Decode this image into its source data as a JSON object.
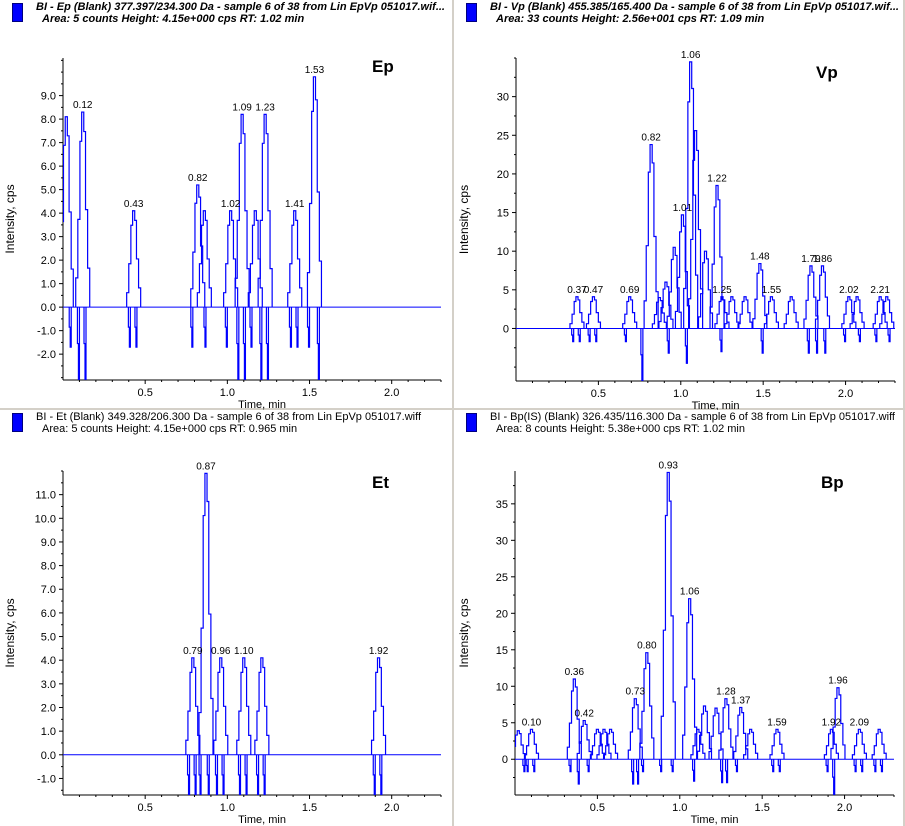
{
  "window": {
    "divider_color": "#d4d0c8",
    "trace_color": "#0000ff"
  },
  "panels": [
    {
      "id": "ep",
      "header_line1": "BI - Ep (Blank) 377.397/234.300 Da - sample 6 of 38 from Lin EpVp 051017.wif...",
      "header_line2": "Area: 5 counts  Height: 4.15e+000 cps  RT: 1.02 min",
      "header_style": "bold-italic"
    },
    {
      "id": "vp",
      "header_line1": "BI - Vp (Blank) 455.385/165.400 Da - sample 6 of 38 from Lin EpVp 051017.wif...",
      "header_line2": "Area: 33 counts  Height: 2.56e+001 cps  RT: 1.09 min",
      "header_style": "bold-italic"
    },
    {
      "id": "et",
      "header_line1": "BI - Et (Blank) 349.328/206.300 Da - sample 6 of 38 from Lin EpVp 051017.wiff",
      "header_line2": "Area: 5 counts  Height: 4.15e+000 cps  RT: 0.965 min",
      "header_style": "normal"
    },
    {
      "id": "bp",
      "header_line1": "BI - Bp(IS) (Blank) 326.435/116.300 Da - sample 6 of 38 from Lin EpVp 051017.wiff",
      "header_line2": "Area: 8 counts  Height: 5.38e+000 cps  RT: 1.02 min",
      "header_style": "normal"
    }
  ],
  "chart_data": [
    {
      "type": "line",
      "title": "Ep",
      "xlabel": "Time, min",
      "ylabel": "Intensity, cps",
      "xlim": [
        0,
        2.3
      ],
      "ylim": [
        -3.1,
        10.6
      ],
      "xticks": [
        0.5,
        1.0,
        1.5,
        2.0
      ],
      "xtick_labels": [
        "0.5",
        "1.0",
        "1.5",
        "2.0"
      ],
      "yticks": [
        -2,
        -1,
        0,
        1,
        2,
        3,
        4,
        5,
        6,
        7,
        8,
        9
      ],
      "ytick_labels": [
        "-2.0",
        "-1.0",
        "0.0",
        "1.0",
        "2.0",
        "3.0",
        "4.0",
        "5.0",
        "6.0",
        "7.0",
        "8.0",
        "9.0"
      ],
      "baseline": 0,
      "peaks": [
        {
          "rt": 0.02,
          "height": 8.1,
          "label": ""
        },
        {
          "rt": 0.12,
          "height": 8.3,
          "label": "0.12"
        },
        {
          "rt": 0.43,
          "height": 4.1,
          "label": "0.43"
        },
        {
          "rt": 0.82,
          "height": 5.2,
          "label": "0.82"
        },
        {
          "rt": 0.86,
          "height": 4.1,
          "label": ""
        },
        {
          "rt": 1.02,
          "height": 4.1,
          "label": "1.02"
        },
        {
          "rt": 1.09,
          "height": 8.2,
          "label": "1.09"
        },
        {
          "rt": 1.17,
          "height": 4.1,
          "label": ""
        },
        {
          "rt": 1.23,
          "height": 8.2,
          "label": "1.23"
        },
        {
          "rt": 1.41,
          "height": 4.1,
          "label": "1.41"
        },
        {
          "rt": 1.53,
          "height": 9.8,
          "label": "1.53"
        }
      ],
      "dips": [
        {
          "rt": 0.05,
          "depth": -1.7
        },
        {
          "rt": 0.1,
          "depth": -3.1
        },
        {
          "rt": 0.14,
          "depth": -3.1
        },
        {
          "rt": 0.41,
          "depth": -1.7
        },
        {
          "rt": 0.45,
          "depth": -1.7
        },
        {
          "rt": 0.79,
          "depth": -1.7
        },
        {
          "rt": 0.87,
          "depth": -1.7
        },
        {
          "rt": 1.0,
          "depth": -1.7
        },
        {
          "rt": 1.07,
          "depth": -3.1
        },
        {
          "rt": 1.11,
          "depth": -3.1
        },
        {
          "rt": 1.15,
          "depth": -1.7
        },
        {
          "rt": 1.21,
          "depth": -3.1
        },
        {
          "rt": 1.25,
          "depth": -3.1
        },
        {
          "rt": 1.39,
          "depth": -1.7
        },
        {
          "rt": 1.43,
          "depth": -1.7
        },
        {
          "rt": 1.5,
          "depth": -1.7
        },
        {
          "rt": 1.56,
          "depth": -3.1
        }
      ]
    },
    {
      "type": "line",
      "title": "Vp",
      "xlabel": "Time, min",
      "ylabel": "Intensity, cps",
      "xlim": [
        0,
        2.3
      ],
      "ylim": [
        -6.8,
        35
      ],
      "xticks": [
        0.5,
        1.0,
        1.5,
        2.0
      ],
      "xtick_labels": [
        "0.5",
        "1.0",
        "1.5",
        "2.0"
      ],
      "yticks": [
        0,
        5,
        10,
        15,
        20,
        25,
        30
      ],
      "ytick_labels": [
        "0",
        "5",
        "10",
        "15",
        "20",
        "25",
        "30"
      ],
      "baseline": 0,
      "peaks": [
        {
          "rt": 0.37,
          "height": 4.1,
          "label": "0.37"
        },
        {
          "rt": 0.47,
          "height": 4.1,
          "label": "0.47"
        },
        {
          "rt": 0.69,
          "height": 4.1,
          "label": "0.69"
        },
        {
          "rt": 0.82,
          "height": 23.8,
          "label": "0.82"
        },
        {
          "rt": 0.87,
          "height": 4.0,
          "label": ""
        },
        {
          "rt": 0.91,
          "height": 6.0,
          "label": ""
        },
        {
          "rt": 0.96,
          "height": 10.5,
          "label": ""
        },
        {
          "rt": 1.01,
          "height": 14.7,
          "label": "1.01"
        },
        {
          "rt": 1.06,
          "height": 34.5,
          "label": "1.06"
        },
        {
          "rt": 1.09,
          "height": 25.6,
          "label": ""
        },
        {
          "rt": 1.15,
          "height": 10.0,
          "label": ""
        },
        {
          "rt": 1.22,
          "height": 18.5,
          "label": "1.22"
        },
        {
          "rt": 1.25,
          "height": 4.1,
          "label": "1.25"
        },
        {
          "rt": 1.31,
          "height": 4.1,
          "label": ""
        },
        {
          "rt": 1.39,
          "height": 4.1,
          "label": ""
        },
        {
          "rt": 1.48,
          "height": 8.4,
          "label": "1.48"
        },
        {
          "rt": 1.55,
          "height": 4.1,
          "label": "1.55"
        },
        {
          "rt": 1.67,
          "height": 4.1,
          "label": ""
        },
        {
          "rt": 1.79,
          "height": 8.1,
          "label": "1.79"
        },
        {
          "rt": 1.86,
          "height": 8.1,
          "label": "1.86"
        },
        {
          "rt": 2.02,
          "height": 4.1,
          "label": "2.02"
        },
        {
          "rt": 2.07,
          "height": 4.1,
          "label": ""
        },
        {
          "rt": 2.21,
          "height": 4.1,
          "label": "2.21"
        },
        {
          "rt": 2.25,
          "height": 4.1,
          "label": ""
        }
      ],
      "dips": [
        {
          "rt": 0.35,
          "depth": -1.7
        },
        {
          "rt": 0.39,
          "depth": -1.7
        },
        {
          "rt": 0.45,
          "depth": -1.7
        },
        {
          "rt": 0.49,
          "depth": -1.7
        },
        {
          "rt": 0.67,
          "depth": -1.7
        },
        {
          "rt": 0.77,
          "depth": -6.8
        },
        {
          "rt": 0.93,
          "depth": -3.2
        },
        {
          "rt": 1.04,
          "depth": -4.5
        },
        {
          "rt": 1.25,
          "depth": -3.0
        },
        {
          "rt": 1.5,
          "depth": -3.2
        },
        {
          "rt": 1.78,
          "depth": -3.2
        },
        {
          "rt": 1.83,
          "depth": -3.2
        },
        {
          "rt": 1.88,
          "depth": -3.2
        },
        {
          "rt": 2.0,
          "depth": -1.7
        },
        {
          "rt": 2.09,
          "depth": -1.7
        },
        {
          "rt": 2.19,
          "depth": -1.7
        },
        {
          "rt": 2.27,
          "depth": -1.7
        }
      ]
    },
    {
      "type": "line",
      "title": "Et",
      "xlabel": "Time, min",
      "ylabel": "Intensity, cps",
      "xlim": [
        0,
        2.3
      ],
      "ylim": [
        -1.7,
        12
      ],
      "xticks": [
        0.5,
        1.0,
        1.5,
        2.0
      ],
      "xtick_labels": [
        "0.5",
        "1.0",
        "1.5",
        "2.0"
      ],
      "yticks": [
        -1,
        0,
        1,
        2,
        3,
        4,
        5,
        6,
        7,
        8,
        9,
        10,
        11
      ],
      "ytick_labels": [
        "-1.0",
        "0.0",
        "1.0",
        "2.0",
        "3.0",
        "4.0",
        "5.0",
        "6.0",
        "7.0",
        "8.0",
        "9.0",
        "10.0",
        "11.0"
      ],
      "baseline": 0,
      "peaks": [
        {
          "rt": 0.79,
          "height": 4.1,
          "label": "0.79"
        },
        {
          "rt": 0.87,
          "height": 11.9,
          "label": "0.87"
        },
        {
          "rt": 0.96,
          "height": 4.1,
          "label": "0.96"
        },
        {
          "rt": 1.1,
          "height": 4.1,
          "label": "1.10"
        },
        {
          "rt": 1.21,
          "height": 4.1,
          "label": ""
        },
        {
          "rt": 1.92,
          "height": 4.1,
          "label": "1.92"
        }
      ],
      "dips": [
        {
          "rt": 0.77,
          "depth": -1.7
        },
        {
          "rt": 0.81,
          "depth": -1.7
        },
        {
          "rt": 0.84,
          "depth": -1.7
        },
        {
          "rt": 0.89,
          "depth": -1.7
        },
        {
          "rt": 0.94,
          "depth": -1.7
        },
        {
          "rt": 0.98,
          "depth": -1.7
        },
        {
          "rt": 1.08,
          "depth": -1.7
        },
        {
          "rt": 1.12,
          "depth": -1.7
        },
        {
          "rt": 1.19,
          "depth": -1.7
        },
        {
          "rt": 1.23,
          "depth": -1.7
        },
        {
          "rt": 1.9,
          "depth": -1.7
        },
        {
          "rt": 1.94,
          "depth": -1.7
        }
      ]
    },
    {
      "type": "line",
      "title": "Bp",
      "xlabel": "Time, min",
      "ylabel": "Intensity, cps",
      "xlim": [
        0,
        2.3
      ],
      "ylim": [
        -4.9,
        39.5
      ],
      "xticks": [
        0.5,
        1.0,
        1.5,
        2.0
      ],
      "xtick_labels": [
        "0.5",
        "1.0",
        "1.5",
        "2.0"
      ],
      "yticks": [
        0,
        5,
        10,
        15,
        20,
        25,
        30,
        35
      ],
      "ytick_labels": [
        "0",
        "5",
        "10",
        "15",
        "20",
        "25",
        "30",
        "35"
      ],
      "baseline": 0,
      "peaks": [
        {
          "rt": 0.02,
          "height": 3.9,
          "label": ""
        },
        {
          "rt": 0.1,
          "height": 4.1,
          "label": "0.10"
        },
        {
          "rt": 0.36,
          "height": 11.0,
          "label": "0.36"
        },
        {
          "rt": 0.42,
          "height": 5.3,
          "label": "0.42"
        },
        {
          "rt": 0.5,
          "height": 4.1,
          "label": ""
        },
        {
          "rt": 0.54,
          "height": 4.1,
          "label": ""
        },
        {
          "rt": 0.58,
          "height": 4.1,
          "label": ""
        },
        {
          "rt": 0.73,
          "height": 8.3,
          "label": "0.73"
        },
        {
          "rt": 0.8,
          "height": 14.6,
          "label": "0.80"
        },
        {
          "rt": 0.93,
          "height": 39.3,
          "label": "0.93"
        },
        {
          "rt": 1.06,
          "height": 22.0,
          "label": "1.06"
        },
        {
          "rt": 1.11,
          "height": 4.1,
          "label": ""
        },
        {
          "rt": 1.15,
          "height": 7.3,
          "label": ""
        },
        {
          "rt": 1.22,
          "height": 7.0,
          "label": ""
        },
        {
          "rt": 1.28,
          "height": 8.3,
          "label": "1.28"
        },
        {
          "rt": 1.37,
          "height": 7.1,
          "label": "1.37"
        },
        {
          "rt": 1.43,
          "height": 4.1,
          "label": ""
        },
        {
          "rt": 1.59,
          "height": 4.1,
          "label": "1.59"
        },
        {
          "rt": 1.92,
          "height": 4.1,
          "label": "1.92"
        },
        {
          "rt": 1.96,
          "height": 9.8,
          "label": "1.96"
        },
        {
          "rt": 2.09,
          "height": 4.1,
          "label": "2.09"
        },
        {
          "rt": 2.21,
          "height": 4.1,
          "label": ""
        }
      ],
      "dips": [
        {
          "rt": 0.06,
          "depth": -1.7
        },
        {
          "rt": 0.08,
          "depth": -1.7
        },
        {
          "rt": 0.12,
          "depth": -1.7
        },
        {
          "rt": 0.34,
          "depth": -1.7
        },
        {
          "rt": 0.39,
          "depth": -3.4
        },
        {
          "rt": 0.45,
          "depth": -1.7
        },
        {
          "rt": 0.72,
          "depth": -3.4
        },
        {
          "rt": 0.75,
          "depth": -3.4
        },
        {
          "rt": 0.78,
          "depth": -1.7
        },
        {
          "rt": 0.89,
          "depth": -1.7
        },
        {
          "rt": 0.96,
          "depth": -1.7
        },
        {
          "rt": 1.09,
          "depth": -3.0
        },
        {
          "rt": 1.26,
          "depth": -3.2
        },
        {
          "rt": 1.29,
          "depth": -3.2
        },
        {
          "rt": 1.35,
          "depth": -1.7
        },
        {
          "rt": 1.57,
          "depth": -1.7
        },
        {
          "rt": 1.61,
          "depth": -1.7
        },
        {
          "rt": 1.9,
          "depth": -1.7
        },
        {
          "rt": 1.94,
          "depth": -4.9
        },
        {
          "rt": 2.07,
          "depth": -1.7
        },
        {
          "rt": 2.11,
          "depth": -1.7
        },
        {
          "rt": 2.19,
          "depth": -1.7
        },
        {
          "rt": 2.23,
          "depth": -1.7
        }
      ]
    }
  ]
}
